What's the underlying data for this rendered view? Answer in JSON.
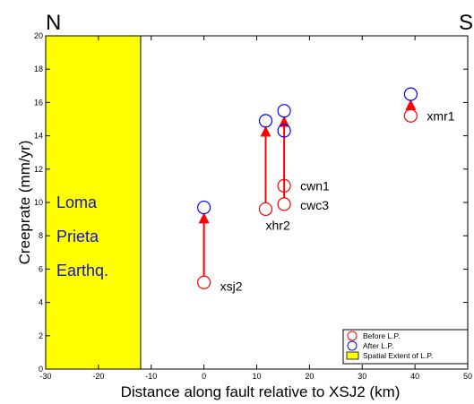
{
  "chart_data": {
    "type": "scatter",
    "corner_labels": {
      "left": "N",
      "right": "S"
    },
    "xlabel": "Distance along fault relative to XSJ2 (km)",
    "ylabel": "Creeprate (mm/yr)",
    "xlim": [
      -30,
      50
    ],
    "ylim": [
      0,
      20
    ],
    "xticks": [
      -30,
      -20,
      -10,
      0,
      10,
      20,
      30,
      40,
      50
    ],
    "yticks": [
      0,
      2,
      4,
      6,
      8,
      10,
      12,
      14,
      16,
      18,
      20
    ],
    "spatial_extent": {
      "x_range": [
        -30,
        -12
      ],
      "color": "#ffff00"
    },
    "band_text": [
      "Loma",
      "Prieta",
      "Earthq."
    ],
    "series": [
      {
        "name": "Before L.P.",
        "color": "#ff0000",
        "points": [
          {
            "label": "xsj2",
            "x": 0,
            "y": 5.2
          },
          {
            "label": "xhr2",
            "x": 11.7,
            "y": 9.6
          },
          {
            "label": "cwn1",
            "x": 15.2,
            "y": 11.0
          },
          {
            "label": "cwc3",
            "x": 15.2,
            "y": 9.9
          },
          {
            "label": "xmr1",
            "x": 39.2,
            "y": 15.2
          }
        ]
      },
      {
        "name": "After L.P.",
        "color": "#0000ff",
        "points": [
          {
            "x": 0,
            "y": 9.7
          },
          {
            "x": 11.7,
            "y": 14.9
          },
          {
            "x": 15.2,
            "y": 15.5
          },
          {
            "x": 15.2,
            "y": 14.3
          },
          {
            "x": 39.2,
            "y": 16.5
          }
        ]
      }
    ],
    "arrows": [
      {
        "x": 0,
        "y_from": 5.2,
        "y_to": 9.7
      },
      {
        "x": 11.7,
        "y_from": 9.6,
        "y_to": 14.9
      },
      {
        "x": 15.2,
        "y_from": 9.9,
        "y_to": 15.5
      },
      {
        "x": 39.2,
        "y_from": 15.2,
        "y_to": 16.5
      }
    ],
    "arrow_color": "#ff0000",
    "legend": {
      "position": "bottom-right",
      "entries": [
        "Before L.P.",
        "After L.P.",
        "Spatial Extent of L.P."
      ]
    },
    "grid": false
  }
}
